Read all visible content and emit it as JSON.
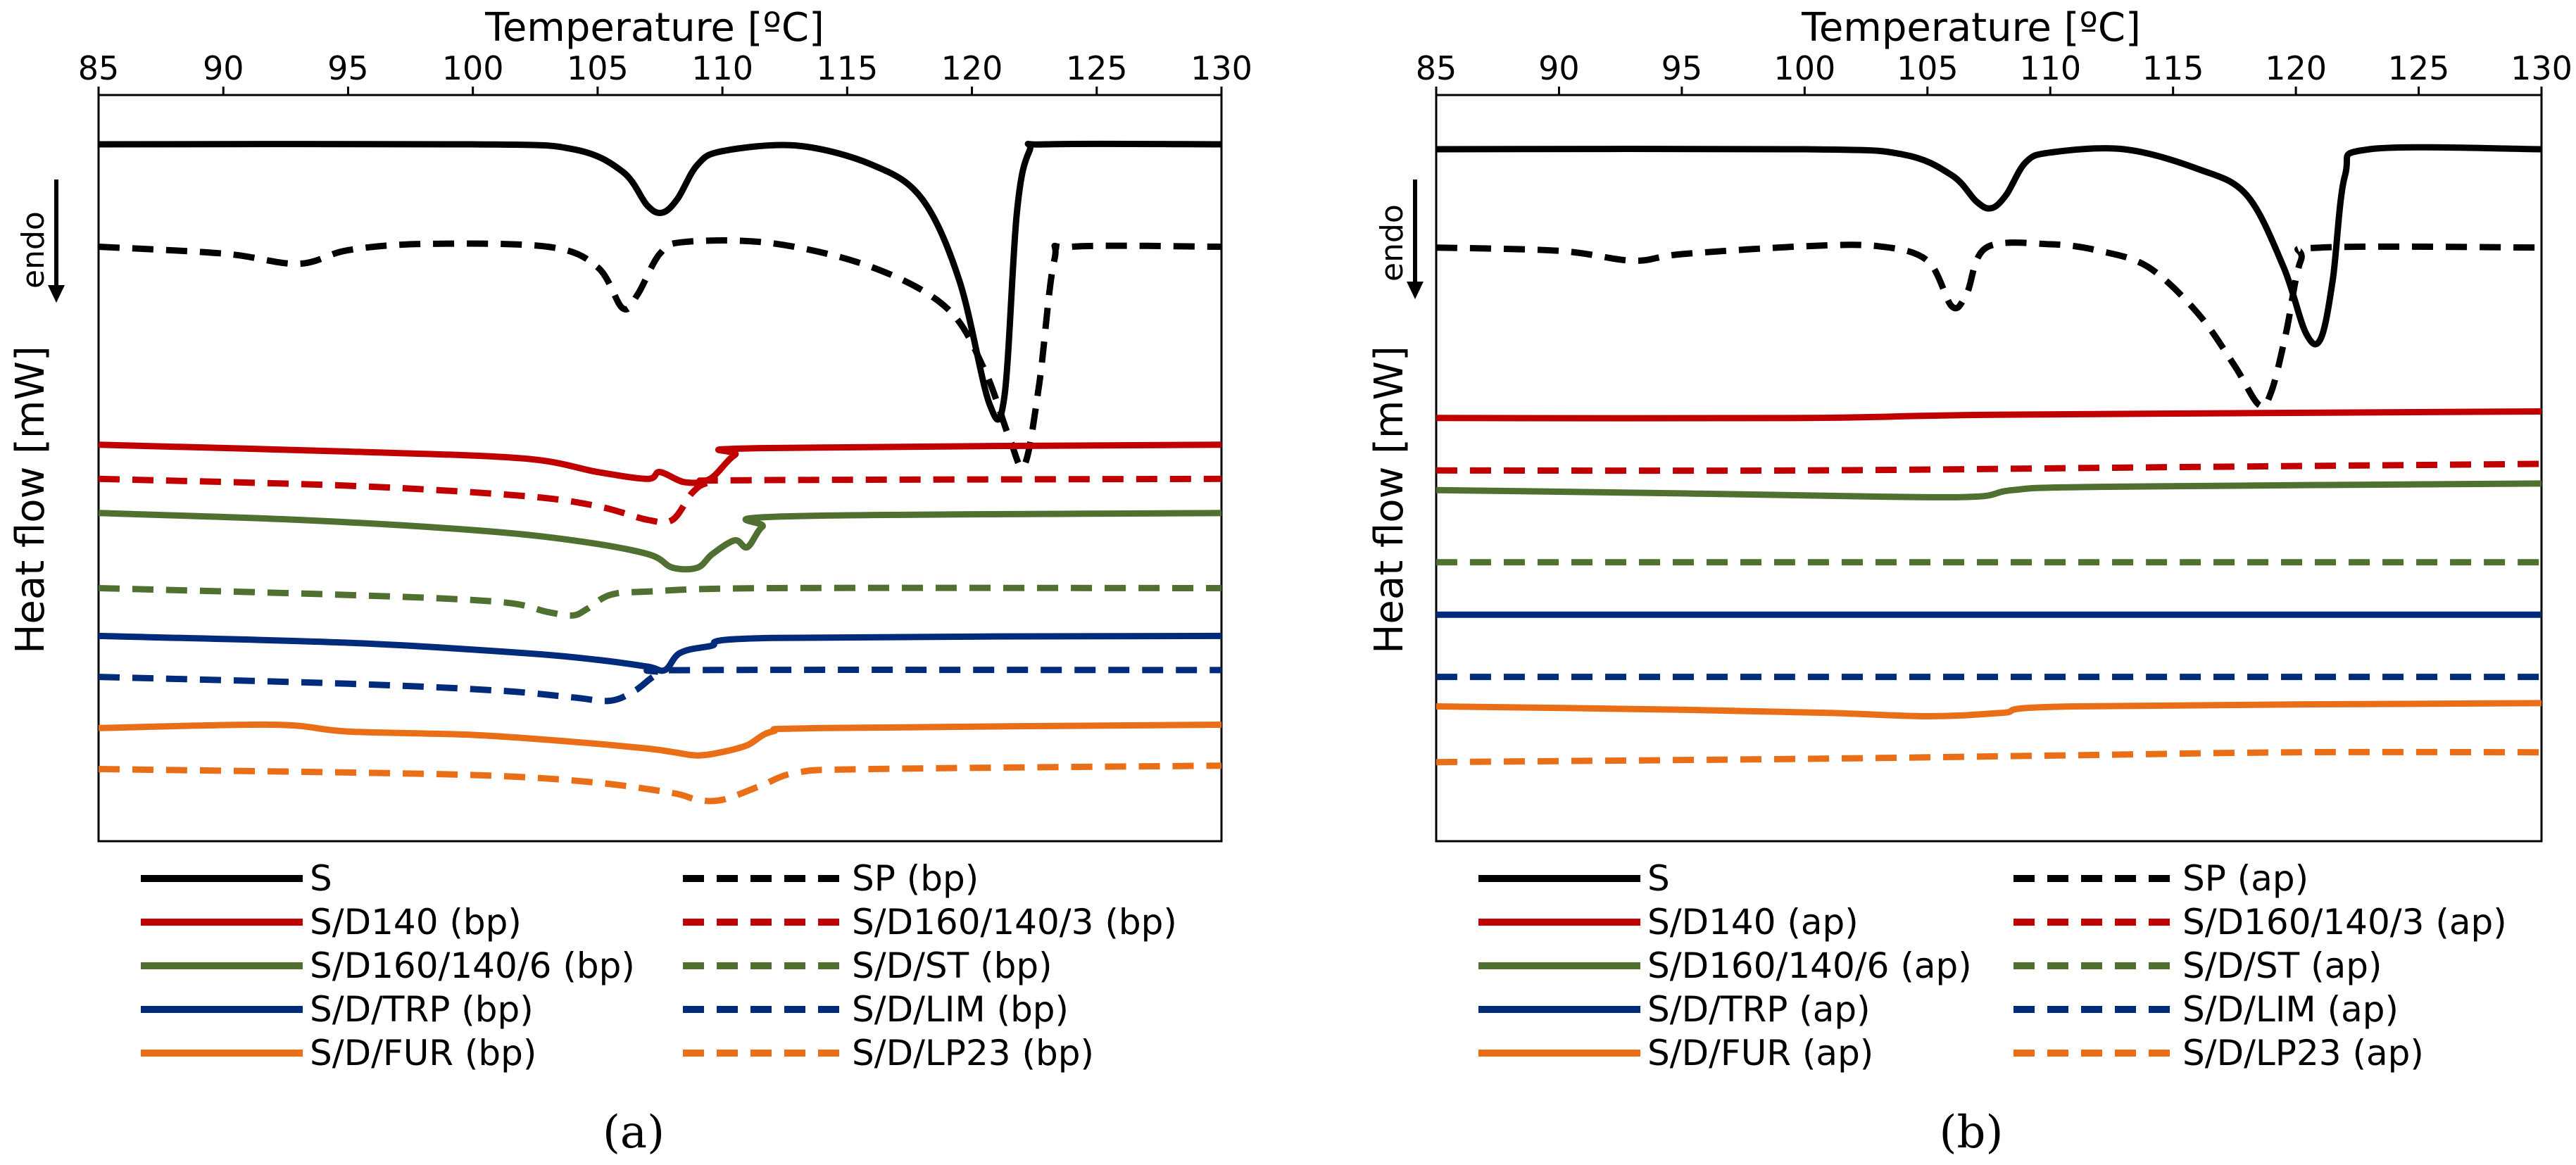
{
  "figure": {
    "xlabel": "Temperature [ºC]",
    "ylabel": "Heat flow [mW]",
    "endo_label": "endo",
    "endo_arrow": "down-arrow-icon"
  },
  "chart_data": [
    {
      "type": "line",
      "panel_label": "(a)",
      "xlabel": "Temperature [ºC]",
      "ylabel": "Heat flow [mW]",
      "endo_label": "endo",
      "xlim": [
        85,
        130
      ],
      "xticks": [
        "85",
        "90",
        "95",
        "100",
        "105",
        "110",
        "115",
        "120",
        "125",
        "130"
      ],
      "yaxis": "unlabeled, curves vertically offset (arbitrary units, top = 0)",
      "series": [
        {
          "name": "S",
          "color": "#000000",
          "dash": "solid",
          "points": [
            [
              85,
              0
            ],
            [
              100,
              0
            ],
            [
              104,
              0.7
            ],
            [
              106,
              4
            ],
            [
              107,
              9
            ],
            [
              107.6,
              10
            ],
            [
              108.2,
              8
            ],
            [
              109,
              3
            ],
            [
              110,
              1
            ],
            [
              113,
              0.2
            ],
            [
              116,
              3
            ],
            [
              118,
              8
            ],
            [
              119.5,
              20
            ],
            [
              120.7,
              38
            ],
            [
              121.3,
              37
            ],
            [
              121.8,
              10
            ],
            [
              122.3,
              1
            ],
            [
              123,
              0
            ],
            [
              130,
              0
            ]
          ]
        },
        {
          "name": "SP (bp)",
          "color": "#000000",
          "dash": "dash",
          "points": [
            [
              85,
              15
            ],
            [
              90,
              16
            ],
            [
              93,
              17.5
            ],
            [
              95,
              15.5
            ],
            [
              98,
              14.6
            ],
            [
              103,
              15
            ],
            [
              105,
              18
            ],
            [
              106,
              24
            ],
            [
              106.6,
              22
            ],
            [
              107.5,
              16
            ],
            [
              108.5,
              14.3
            ],
            [
              112,
              14.5
            ],
            [
              116,
              18
            ],
            [
              119,
              24
            ],
            [
              120.5,
              33
            ],
            [
              121.5,
              43
            ],
            [
              122.1,
              47
            ],
            [
              122.7,
              35
            ],
            [
              123.3,
              17
            ],
            [
              124,
              15
            ],
            [
              130,
              15
            ]
          ]
        },
        {
          "name": "S/D140 (bp)",
          "color": "#c00000",
          "dash": "solid",
          "points": [
            [
              85,
              44
            ],
            [
              95,
              45
            ],
            [
              102,
              46
            ],
            [
              105,
              48
            ],
            [
              107,
              49
            ],
            [
              107.5,
              48
            ],
            [
              108.5,
              49.5
            ],
            [
              109.5,
              49
            ],
            [
              110.5,
              45.5
            ],
            [
              111.5,
              44.5
            ],
            [
              130,
              44
            ]
          ]
        },
        {
          "name": "S/D160/140/3 (bp)",
          "color": "#c00000",
          "dash": "dash",
          "points": [
            [
              85,
              49
            ],
            [
              95,
              50
            ],
            [
              102,
              51.5
            ],
            [
              105,
              53
            ],
            [
              107,
              55
            ],
            [
              108,
              55
            ],
            [
              108.8,
              51
            ],
            [
              109.5,
              49.5
            ],
            [
              111,
              49.2
            ],
            [
              130,
              49
            ]
          ]
        },
        {
          "name": "S/D160/140/6 (bp)",
          "color": "#4f7030",
          "dash": "solid",
          "points": [
            [
              85,
              54
            ],
            [
              93,
              55
            ],
            [
              100,
              56.5
            ],
            [
              104,
              58
            ],
            [
              107,
              60
            ],
            [
              108,
              62
            ],
            [
              109,
              62
            ],
            [
              109.6,
              60
            ],
            [
              110.5,
              58
            ],
            [
              111,
              59
            ],
            [
              111.6,
              56
            ],
            [
              112.5,
              54.5
            ],
            [
              130,
              54
            ]
          ]
        },
        {
          "name": "S/D/ST (bp)",
          "color": "#4f7030",
          "dash": "dash",
          "points": [
            [
              85,
              65
            ],
            [
              95,
              66
            ],
            [
              101,
              67
            ],
            [
              103,
              68.5
            ],
            [
              104,
              69
            ],
            [
              104.6,
              68
            ],
            [
              105.5,
              66
            ],
            [
              107,
              65.5
            ],
            [
              112,
              65
            ],
            [
              130,
              65
            ]
          ]
        },
        {
          "name": "S/D/TRP (bp)",
          "color": "#002a7a",
          "dash": "solid",
          "points": [
            [
              85,
              72
            ],
            [
              95,
              73
            ],
            [
              102,
              74.5
            ],
            [
              105,
              75.5
            ],
            [
              107,
              76.5
            ],
            [
              107.7,
              77
            ],
            [
              108.3,
              74.5
            ],
            [
              109.5,
              73.5
            ],
            [
              112,
              72.3
            ],
            [
              130,
              72
            ]
          ]
        },
        {
          "name": "S/D/LIM (bp)",
          "color": "#002a7a",
          "dash": "dash",
          "points": [
            [
              85,
              78
            ],
            [
              95,
              79
            ],
            [
              101,
              80
            ],
            [
              104,
              81
            ],
            [
              105.5,
              81.5
            ],
            [
              106.5,
              80
            ],
            [
              107.5,
              77.5
            ],
            [
              109,
              77
            ],
            [
              130,
              77
            ]
          ]
        },
        {
          "name": "S/D/FUR (bp)",
          "color": "#e96e16",
          "dash": "solid",
          "points": [
            [
              85,
              85.5
            ],
            [
              92,
              85
            ],
            [
              95,
              86
            ],
            [
              100,
              86.5
            ],
            [
              104,
              87.5
            ],
            [
              107,
              88.5
            ],
            [
              108,
              89
            ],
            [
              109,
              89.5
            ],
            [
              110,
              89
            ],
            [
              111,
              88
            ],
            [
              112,
              86
            ],
            [
              114,
              85.5
            ],
            [
              130,
              85
            ]
          ]
        },
        {
          "name": "S/D/LP23 (bp)",
          "color": "#e96e16",
          "dash": "dash",
          "points": [
            [
              85,
              91.5
            ],
            [
              95,
              92
            ],
            [
              101,
              92.5
            ],
            [
              105,
              93.5
            ],
            [
              108,
              95
            ],
            [
              109,
              96
            ],
            [
              110,
              96
            ],
            [
              111.5,
              94
            ],
            [
              113,
              92
            ],
            [
              116,
              91.5
            ],
            [
              130,
              91
            ]
          ]
        }
      ],
      "legend": {
        "placement": "below-plot",
        "items": [
          "S",
          "SP (bp)",
          "S/D140 (bp)",
          "S/D160/140/3 (bp)",
          "S/D160/140/6 (bp)",
          "S/D/ST (bp)",
          "S/D/TRP (bp)",
          "S/D/LIM (bp)",
          "S/D/FUR (bp)",
          "S/D/LP23 (bp)"
        ]
      }
    },
    {
      "type": "line",
      "panel_label": "(b)",
      "xlabel": "Temperature [ºC]",
      "ylabel": "Heat flow [mW]",
      "endo_label": "endo",
      "xlim": [
        85,
        130
      ],
      "xticks": [
        "85",
        "90",
        "95",
        "100",
        "105",
        "110",
        "115",
        "120",
        "125",
        "130"
      ],
      "yaxis": "unlabeled, curves vertically offset (arbitrary units, top = 0)",
      "series": [
        {
          "name": "S",
          "color": "#000000",
          "dash": "solid",
          "points": [
            [
              85,
              0
            ],
            [
              100,
              0
            ],
            [
              104,
              0.8
            ],
            [
              106,
              4
            ],
            [
              107,
              8
            ],
            [
              107.6,
              9
            ],
            [
              108.2,
              7
            ],
            [
              109,
              2
            ],
            [
              110,
              0.5
            ],
            [
              113,
              0
            ],
            [
              116,
              3
            ],
            [
              118,
              7
            ],
            [
              119.5,
              18
            ],
            [
              120.4,
              28
            ],
            [
              121,
              29
            ],
            [
              121.5,
              20
            ],
            [
              122,
              4
            ],
            [
              123,
              0
            ],
            [
              130,
              0
            ]
          ]
        },
        {
          "name": "SP (ap)",
          "color": "#000000",
          "dash": "dash",
          "points": [
            [
              85,
              15
            ],
            [
              90,
              15.5
            ],
            [
              93,
              17
            ],
            [
              95,
              16
            ],
            [
              100,
              14.8
            ],
            [
              103,
              14.8
            ],
            [
              105,
              17
            ],
            [
              106,
              24
            ],
            [
              106.6,
              22
            ],
            [
              107.4,
              15
            ],
            [
              110,
              14.5
            ],
            [
              112,
              15.5
            ],
            [
              114,
              18
            ],
            [
              116,
              25
            ],
            [
              117.5,
              33
            ],
            [
              118.5,
              39
            ],
            [
              119,
              37
            ],
            [
              119.6,
              28
            ],
            [
              120.2,
              17
            ],
            [
              121,
              15
            ],
            [
              130,
              15
            ]
          ]
        },
        {
          "name": "S/D140 (ap)",
          "color": "#c00000",
          "dash": "solid",
          "points": [
            [
              85,
              41
            ],
            [
              100,
              41
            ],
            [
              108,
              40.5
            ],
            [
              130,
              40
            ]
          ]
        },
        {
          "name": "S/D160/140/3 (ap)",
          "color": "#c00000",
          "dash": "dash",
          "points": [
            [
              85,
              49
            ],
            [
              100,
              49
            ],
            [
              115,
              48.5
            ],
            [
              130,
              48
            ]
          ]
        },
        {
          "name": "S/D160/140/6 (ap)",
          "color": "#4f7030",
          "dash": "solid",
          "points": [
            [
              85,
              52
            ],
            [
              95,
              52.5
            ],
            [
              103,
              53
            ],
            [
              107,
              53
            ],
            [
              108.5,
              52
            ],
            [
              112,
              51.5
            ],
            [
              130,
              51
            ]
          ]
        },
        {
          "name": "S/D/ST (ap)",
          "color": "#4f7030",
          "dash": "dash",
          "points": [
            [
              85,
              63
            ],
            [
              130,
              63
            ]
          ]
        },
        {
          "name": "S/D/TRP (ap)",
          "color": "#002a7a",
          "dash": "solid",
          "points": [
            [
              85,
              71
            ],
            [
              130,
              71
            ]
          ]
        },
        {
          "name": "S/D/LIM (ap)",
          "color": "#002a7a",
          "dash": "dash",
          "points": [
            [
              85,
              80.5
            ],
            [
              130,
              80.5
            ]
          ]
        },
        {
          "name": "S/D/FUR (ap)",
          "color": "#e96e16",
          "dash": "solid",
          "points": [
            [
              85,
              85
            ],
            [
              95,
              85.5
            ],
            [
              101,
              86
            ],
            [
              105,
              86.5
            ],
            [
              108,
              86
            ],
            [
              111,
              85
            ],
            [
              130,
              84.5
            ]
          ]
        },
        {
          "name": "S/D/LP23 (ap)",
          "color": "#e96e16",
          "dash": "dash",
          "points": [
            [
              85,
              93.5
            ],
            [
              100,
              93
            ],
            [
              110,
              92.5
            ],
            [
              120,
              92
            ],
            [
              130,
              92
            ]
          ]
        }
      ],
      "legend": {
        "placement": "below-plot",
        "items": [
          "S",
          "SP (ap)",
          "S/D140 (ap)",
          "S/D160/140/3 (ap)",
          "S/D160/140/6 (ap)",
          "S/D/ST (ap)",
          "S/D/TRP (ap)",
          "S/D/LIM (ap)",
          "S/D/FUR (ap)",
          "S/D/LP23 (ap)"
        ]
      }
    }
  ]
}
